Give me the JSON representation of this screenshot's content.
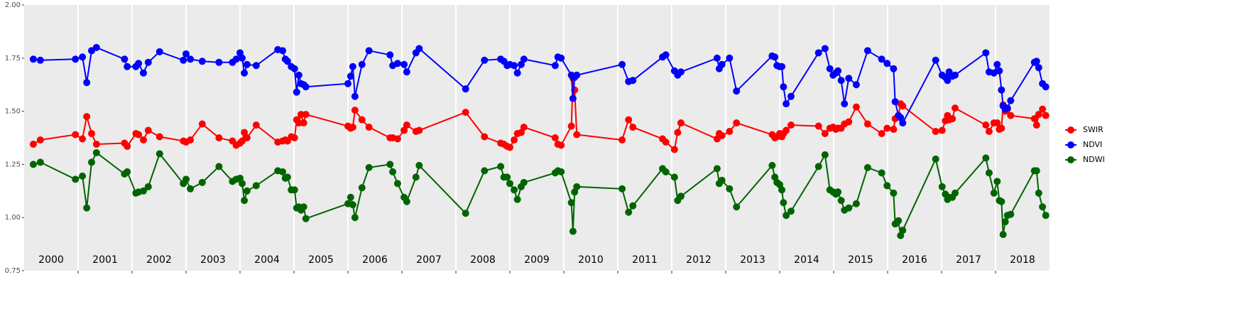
{
  "chart_data": {
    "type": "line",
    "x": [
      2000.17,
      2000.3,
      2000.95,
      2001.08,
      2001.16,
      2001.25,
      2001.34,
      2001.86,
      2001.91,
      2002.07,
      2002.12,
      2002.21,
      2002.3,
      2002.51,
      2002.95,
      2003.0,
      2003.08,
      2003.3,
      2003.61,
      2003.86,
      2003.93,
      2004.0,
      2004.04,
      2004.08,
      2004.13,
      2004.3,
      2004.7,
      2004.79,
      2004.84,
      2004.88,
      2004.95,
      2005.01,
      2005.05,
      2005.09,
      2005.13,
      2005.18,
      2005.22,
      2006.0,
      2006.05,
      2006.09,
      2006.13,
      2006.26,
      2006.39,
      2006.78,
      2006.83,
      2006.92,
      2007.04,
      2007.09,
      2007.26,
      2007.32,
      2008.18,
      2008.53,
      2008.83,
      2008.89,
      2008.95,
      2009.0,
      2009.08,
      2009.14,
      2009.21,
      2009.26,
      2009.84,
      2009.89,
      2009.95,
      2010.14,
      2010.17,
      2010.2,
      2010.24,
      2011.08,
      2011.2,
      2011.28,
      2011.83,
      2011.89,
      2012.05,
      2012.11,
      2012.17,
      2012.84,
      2012.88,
      2012.93,
      2013.07,
      2013.2,
      2013.86,
      2013.91,
      2013.95,
      2014.0,
      2014.04,
      2014.07,
      2014.12,
      2014.21,
      2014.72,
      2014.84,
      2014.93,
      2014.99,
      2015.04,
      2015.08,
      2015.14,
      2015.2,
      2015.28,
      2015.42,
      2015.63,
      2015.89,
      2015.99,
      2016.11,
      2016.14,
      2016.2,
      2016.24,
      2016.28,
      2016.89,
      2017.01,
      2017.07,
      2017.11,
      2017.14,
      2017.2,
      2017.25,
      2017.82,
      2017.88,
      2017.97,
      2018.03,
      2018.07,
      2018.11,
      2018.14,
      2018.18,
      2018.22,
      2018.28,
      2018.72,
      2018.76,
      2018.8,
      2018.87,
      2018.93
    ],
    "series": [
      {
        "name": "SWIR",
        "color": "#ff0000",
        "values": [
          1.345,
          1.365,
          1.39,
          1.37,
          1.475,
          1.395,
          1.345,
          1.35,
          1.335,
          1.395,
          1.39,
          1.365,
          1.41,
          1.38,
          1.36,
          1.355,
          1.365,
          1.44,
          1.375,
          1.36,
          1.34,
          1.35,
          1.36,
          1.4,
          1.375,
          1.435,
          1.355,
          1.36,
          1.365,
          1.36,
          1.38,
          1.375,
          1.46,
          1.445,
          1.485,
          1.445,
          1.485,
          1.43,
          1.42,
          1.425,
          1.505,
          1.46,
          1.425,
          1.375,
          1.375,
          1.37,
          1.41,
          1.435,
          1.405,
          1.41,
          1.495,
          1.38,
          1.35,
          1.345,
          1.335,
          1.33,
          1.365,
          1.395,
          1.4,
          1.425,
          1.375,
          1.345,
          1.34,
          1.43,
          1.655,
          1.6,
          1.39,
          1.365,
          1.46,
          1.425,
          1.37,
          1.355,
          1.32,
          1.4,
          1.445,
          1.37,
          1.395,
          1.385,
          1.405,
          1.445,
          1.39,
          1.375,
          1.38,
          1.395,
          1.38,
          1.395,
          1.41,
          1.435,
          1.43,
          1.395,
          1.42,
          1.425,
          1.415,
          1.42,
          1.42,
          1.44,
          1.45,
          1.52,
          1.44,
          1.395,
          1.42,
          1.415,
          1.465,
          1.48,
          1.535,
          1.525,
          1.405,
          1.41,
          1.455,
          1.48,
          1.46,
          1.465,
          1.515,
          1.435,
          1.405,
          1.445,
          1.445,
          1.415,
          1.42,
          1.53,
          1.5,
          1.51,
          1.48,
          1.465,
          1.435,
          1.485,
          1.51,
          1.48
        ]
      },
      {
        "name": "NDVI",
        "color": "#0000ff",
        "values": [
          1.745,
          1.74,
          1.745,
          1.755,
          1.635,
          1.785,
          1.8,
          1.745,
          1.71,
          1.71,
          1.725,
          1.68,
          1.73,
          1.78,
          1.74,
          1.77,
          1.745,
          1.735,
          1.73,
          1.73,
          1.745,
          1.775,
          1.75,
          1.68,
          1.72,
          1.715,
          1.79,
          1.785,
          1.745,
          1.735,
          1.71,
          1.7,
          1.59,
          1.67,
          1.63,
          1.625,
          1.615,
          1.63,
          1.665,
          1.71,
          1.57,
          1.72,
          1.785,
          1.765,
          1.715,
          1.725,
          1.72,
          1.685,
          1.775,
          1.795,
          1.605,
          1.74,
          1.745,
          1.735,
          1.715,
          1.72,
          1.715,
          1.68,
          1.72,
          1.745,
          1.715,
          1.755,
          1.75,
          1.67,
          1.56,
          1.66,
          1.67,
          1.72,
          1.64,
          1.645,
          1.755,
          1.765,
          1.69,
          1.67,
          1.685,
          1.75,
          1.7,
          1.72,
          1.75,
          1.595,
          1.76,
          1.755,
          1.715,
          1.71,
          1.71,
          1.615,
          1.535,
          1.57,
          1.775,
          1.795,
          1.7,
          1.67,
          1.68,
          1.69,
          1.645,
          1.535,
          1.655,
          1.625,
          1.785,
          1.745,
          1.725,
          1.7,
          1.545,
          1.48,
          1.47,
          1.445,
          1.74,
          1.67,
          1.66,
          1.645,
          1.685,
          1.665,
          1.67,
          1.775,
          1.685,
          1.68,
          1.72,
          1.69,
          1.6,
          1.525,
          1.51,
          1.515,
          1.55,
          1.73,
          1.735,
          1.705,
          1.63,
          1.615
        ]
      },
      {
        "name": "NDWI",
        "color": "#006400",
        "values": [
          1.25,
          1.26,
          1.18,
          1.195,
          1.045,
          1.26,
          1.305,
          1.205,
          1.215,
          1.115,
          1.12,
          1.125,
          1.145,
          1.3,
          1.16,
          1.18,
          1.135,
          1.165,
          1.24,
          1.17,
          1.18,
          1.185,
          1.16,
          1.08,
          1.125,
          1.15,
          1.22,
          1.215,
          1.185,
          1.19,
          1.13,
          1.13,
          1.045,
          1.05,
          1.035,
          1.05,
          0.995,
          1.065,
          1.095,
          1.06,
          1.0,
          1.14,
          1.235,
          1.25,
          1.215,
          1.16,
          1.095,
          1.075,
          1.19,
          1.245,
          1.02,
          1.22,
          1.24,
          1.19,
          1.19,
          1.16,
          1.13,
          1.085,
          1.145,
          1.165,
          1.21,
          1.22,
          1.215,
          1.07,
          0.935,
          1.12,
          1.145,
          1.135,
          1.025,
          1.055,
          1.23,
          1.215,
          1.19,
          1.08,
          1.1,
          1.23,
          1.16,
          1.175,
          1.135,
          1.05,
          1.245,
          1.19,
          1.165,
          1.155,
          1.13,
          1.07,
          1.01,
          1.03,
          1.24,
          1.295,
          1.13,
          1.12,
          1.11,
          1.12,
          1.08,
          1.035,
          1.045,
          1.065,
          1.235,
          1.21,
          1.15,
          1.115,
          0.97,
          0.985,
          0.915,
          0.94,
          1.275,
          1.145,
          1.11,
          1.085,
          1.095,
          1.095,
          1.115,
          1.28,
          1.21,
          1.115,
          1.17,
          1.08,
          1.075,
          0.92,
          0.98,
          1.01,
          1.015,
          1.22,
          1.22,
          1.115,
          1.05,
          1.01
        ]
      }
    ],
    "xlim": [
      2000,
      2019
    ],
    "xticks": [
      2001,
      2002,
      2003,
      2004,
      2005,
      2006,
      2007,
      2008,
      2009,
      2010,
      2011,
      2012,
      2013,
      2014,
      2015,
      2016,
      2017,
      2018
    ],
    "ylim": [
      0.75,
      2.0
    ],
    "yticks": [
      {
        "value": 0.75,
        "label": "0.75"
      },
      {
        "value": 1.0,
        "label": "1.00"
      },
      {
        "value": 1.25,
        "label": "1.25"
      },
      {
        "value": 1.5,
        "label": "1.50"
      },
      {
        "value": 1.75,
        "label": "1.75"
      },
      {
        "value": 2.0,
        "label": "2.00"
      }
    ],
    "year_labels": [
      {
        "x": 2000.5,
        "y": 0.8,
        "text": "2000"
      },
      {
        "x": 2001.5,
        "y": 0.8,
        "text": "2001"
      },
      {
        "x": 2002.5,
        "y": 0.8,
        "text": "2002"
      },
      {
        "x": 2003.5,
        "y": 0.8,
        "text": "2003"
      },
      {
        "x": 2004.5,
        "y": 0.8,
        "text": "2004"
      },
      {
        "x": 2005.5,
        "y": 0.8,
        "text": "2005"
      },
      {
        "x": 2006.5,
        "y": 0.8,
        "text": "2006"
      },
      {
        "x": 2007.5,
        "y": 0.8,
        "text": "2007"
      },
      {
        "x": 2008.5,
        "y": 0.8,
        "text": "2008"
      },
      {
        "x": 2009.5,
        "y": 0.8,
        "text": "2009"
      },
      {
        "x": 2010.5,
        "y": 0.8,
        "text": "2010"
      },
      {
        "x": 2011.5,
        "y": 0.8,
        "text": "2011"
      },
      {
        "x": 2012.5,
        "y": 0.8,
        "text": "2012"
      },
      {
        "x": 2013.5,
        "y": 0.8,
        "text": "2013"
      },
      {
        "x": 2014.5,
        "y": 0.8,
        "text": "2014"
      },
      {
        "x": 2015.5,
        "y": 0.8,
        "text": "2015"
      },
      {
        "x": 2016.5,
        "y": 0.8,
        "text": "2016"
      },
      {
        "x": 2017.5,
        "y": 0.8,
        "text": "2017"
      },
      {
        "x": 2018.5,
        "y": 0.8,
        "text": "2018"
      }
    ],
    "grid": true,
    "legend": "right"
  }
}
